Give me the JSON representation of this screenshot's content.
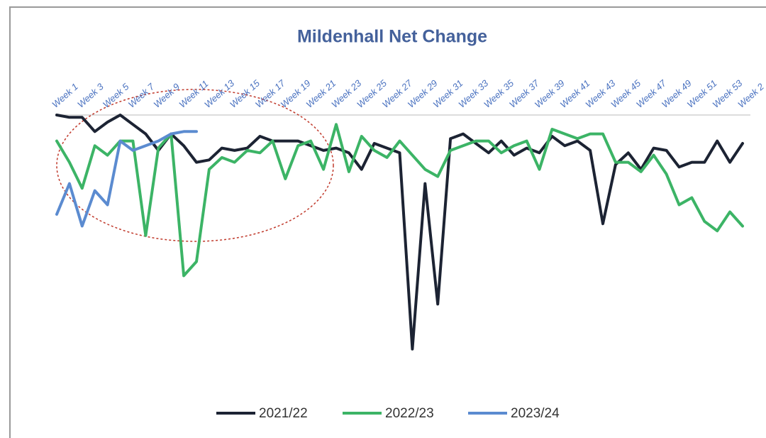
{
  "chart_data": {
    "type": "line",
    "title": "Mildenhall Net Change",
    "categories": [
      "Week 1",
      null,
      "Week 3",
      null,
      "Week 5",
      null,
      "Week 7",
      null,
      "Week 9",
      null,
      "Week 11",
      null,
      "Week 13",
      null,
      "Week 15",
      null,
      "Week 17",
      null,
      "Week 19",
      null,
      "Week 21",
      null,
      "Week 23",
      null,
      "Week 25",
      null,
      "Week 27",
      null,
      "Week 29",
      null,
      "Week 31",
      null,
      "Week 33",
      null,
      "Week 35",
      null,
      "Week 37",
      null,
      "Week 39",
      null,
      "Week 41",
      null,
      "Week 43",
      null,
      "Week 45",
      null,
      "Week 47",
      null,
      "Week 49",
      null,
      "Week 51",
      null,
      "Week 53",
      null,
      "Week 2"
    ],
    "series": [
      {
        "name": "2021/22",
        "color": "#1c2333",
        "values": [
          0,
          -1,
          -1,
          -7,
          -3,
          0,
          -4,
          -8,
          -15,
          -8,
          -13,
          -20,
          -19,
          -14,
          -15,
          -14,
          -9,
          -11,
          -11,
          -11,
          -13,
          -15,
          -14,
          -16,
          -23,
          -12,
          -14,
          -16,
          -99,
          -29,
          -80,
          -10,
          -8,
          -12,
          -16,
          -11,
          -17,
          -14,
          -16,
          -9,
          -13,
          -11,
          -15,
          -46,
          -21,
          -16,
          -23,
          -14,
          -15,
          -22,
          -20,
          -20,
          -11,
          -20,
          -12
        ]
      },
      {
        "name": "2022/23",
        "color": "#3cb466",
        "values": [
          -11,
          -20,
          -31,
          -13,
          -17,
          -11,
          -11,
          -51,
          -14,
          -8,
          -68,
          -62,
          -23,
          -18,
          -20,
          -15,
          -16,
          -11,
          -27,
          -13,
          -11,
          -23,
          -4,
          -24,
          -9,
          -15,
          -18,
          -11,
          -17,
          -23,
          -26,
          -15,
          -13,
          -11,
          -11,
          -16,
          -13,
          -11,
          -23,
          -6,
          -8,
          -10,
          -8,
          -8,
          -20,
          -20,
          -24,
          -17,
          -25,
          -38,
          -35,
          -45,
          -49,
          -41,
          -47
        ]
      },
      {
        "name": "2023/24",
        "color": "#5b8bd0",
        "values": [
          -42,
          -29,
          -47,
          -32,
          -38,
          -11,
          -15,
          -13,
          -11,
          -8,
          -7,
          -7,
          null,
          null,
          null,
          null,
          null,
          null,
          null,
          null,
          null,
          null,
          null,
          null,
          null,
          null,
          null,
          null,
          null,
          null,
          null,
          null,
          null,
          null,
          null,
          null,
          null,
          null,
          null,
          null,
          null,
          null,
          null,
          null,
          null,
          null,
          null,
          null,
          null,
          null,
          null,
          null,
          null,
          null,
          null
        ]
      }
    ],
    "ylim": [
      -100,
      0
    ]
  }
}
